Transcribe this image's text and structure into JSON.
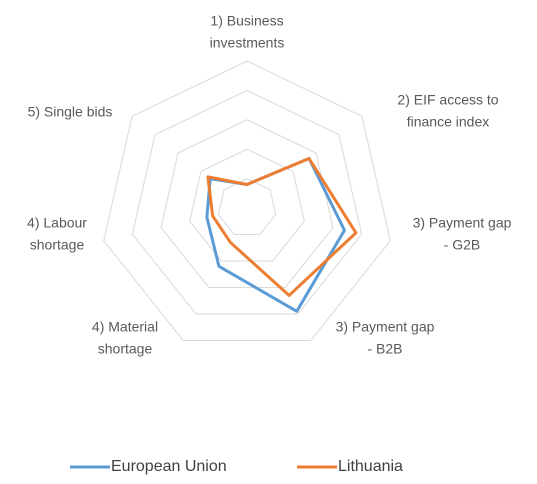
{
  "chart_data": {
    "type": "radar",
    "categories": [
      [
        "1) Business",
        "investments"
      ],
      [
        "2) EIF access to",
        "finance index"
      ],
      [
        "3) Payment gap",
        "- G2B"
      ],
      [
        "3) Payment gap",
        "- B2B"
      ],
      [
        "4) Material",
        "shortage"
      ],
      [
        "4) Labour",
        "shortage"
      ],
      [
        "5) Single bids"
      ]
    ],
    "series": [
      {
        "name": "European Union",
        "color": "#5b9bd5",
        "values": [
          0.8,
          2.7,
          3.4,
          3.9,
          2.2,
          1.4,
          1.6
        ]
      },
      {
        "name": "Lithuania",
        "color": "#ed7d31",
        "values": [
          0.8,
          2.7,
          3.8,
          3.3,
          1.3,
          1.2,
          1.7
        ]
      }
    ],
    "ylim": [
      0,
      5
    ],
    "yticks": [
      0,
      1,
      2,
      3,
      4,
      5
    ],
    "grid": true,
    "grid_color": "#d9d9d9",
    "legend": "bottom"
  }
}
